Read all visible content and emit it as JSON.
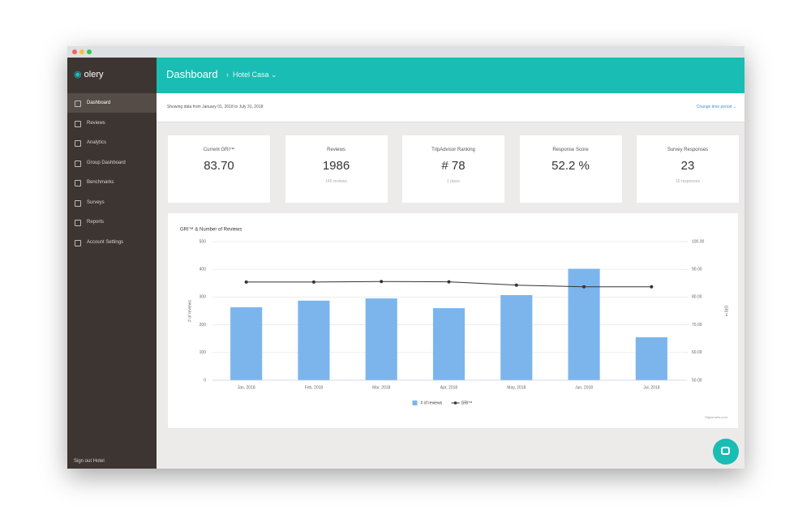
{
  "sidebar": {
    "logo": "olery",
    "items": [
      "Dashboard",
      "Reviews",
      "Analytics",
      "Group Dashboard",
      "Benchmarks",
      "Surveys",
      "Reports",
      "Account Settings"
    ],
    "footer": "Sign out Hotel"
  },
  "header": {
    "title": "Dashboard",
    "breadcrumb": "Hotel Casa"
  },
  "filter": {
    "text": "Showing data from January 01, 2018 to July 31, 2018",
    "action": "Change time period"
  },
  "kpis": [
    {
      "label": "Current GRI™",
      "value": "83.70"
    },
    {
      "label": "Reviews",
      "value": "1986",
      "sub": "145 reviews"
    },
    {
      "label": "TripAdvisor Ranking",
      "value": "# 78",
      "sub": "1 place"
    },
    {
      "label": "Response Score",
      "value": "52.2 %"
    },
    {
      "label": "Survey Responses",
      "value": "23",
      "sub": "10 responses"
    }
  ],
  "chart_data": {
    "type": "bar",
    "title": "GRI™ & Number of Reviews",
    "categories": [
      "Jan, 2018",
      "Feb, 2018",
      "Mar, 2018",
      "Apr, 2018",
      "May, 2018",
      "Jun, 2018",
      "Jul, 2018"
    ],
    "series": [
      {
        "name": "# of reviews",
        "type": "bar",
        "color": "#7cb5ec",
        "values": [
          263,
          287,
          295,
          260,
          307,
          402,
          155
        ]
      },
      {
        "name": "GRI™",
        "type": "line",
        "color": "#333333",
        "axis": "y2",
        "values": [
          85.4,
          85.4,
          85.6,
          85.5,
          84.3,
          83.7,
          83.7
        ]
      }
    ],
    "ylabel": "# of reviews",
    "y2label": "GRI™",
    "ylim": [
      0,
      500
    ],
    "yticks": [
      0,
      100,
      200,
      300,
      400,
      500
    ],
    "y2lim": [
      50,
      100
    ],
    "y2ticks": [
      {
        "value": 50,
        "label": "50.00"
      },
      {
        "value": 60,
        "label": "60.00"
      },
      {
        "value": 70,
        "label": "70.00"
      },
      {
        "value": 80,
        "label": "80.00"
      },
      {
        "value": 90,
        "label": "90.00"
      },
      {
        "value": 100,
        "label": "100.00"
      }
    ],
    "grid": true,
    "legend": "bottom",
    "credits": "Highcharts.com"
  }
}
